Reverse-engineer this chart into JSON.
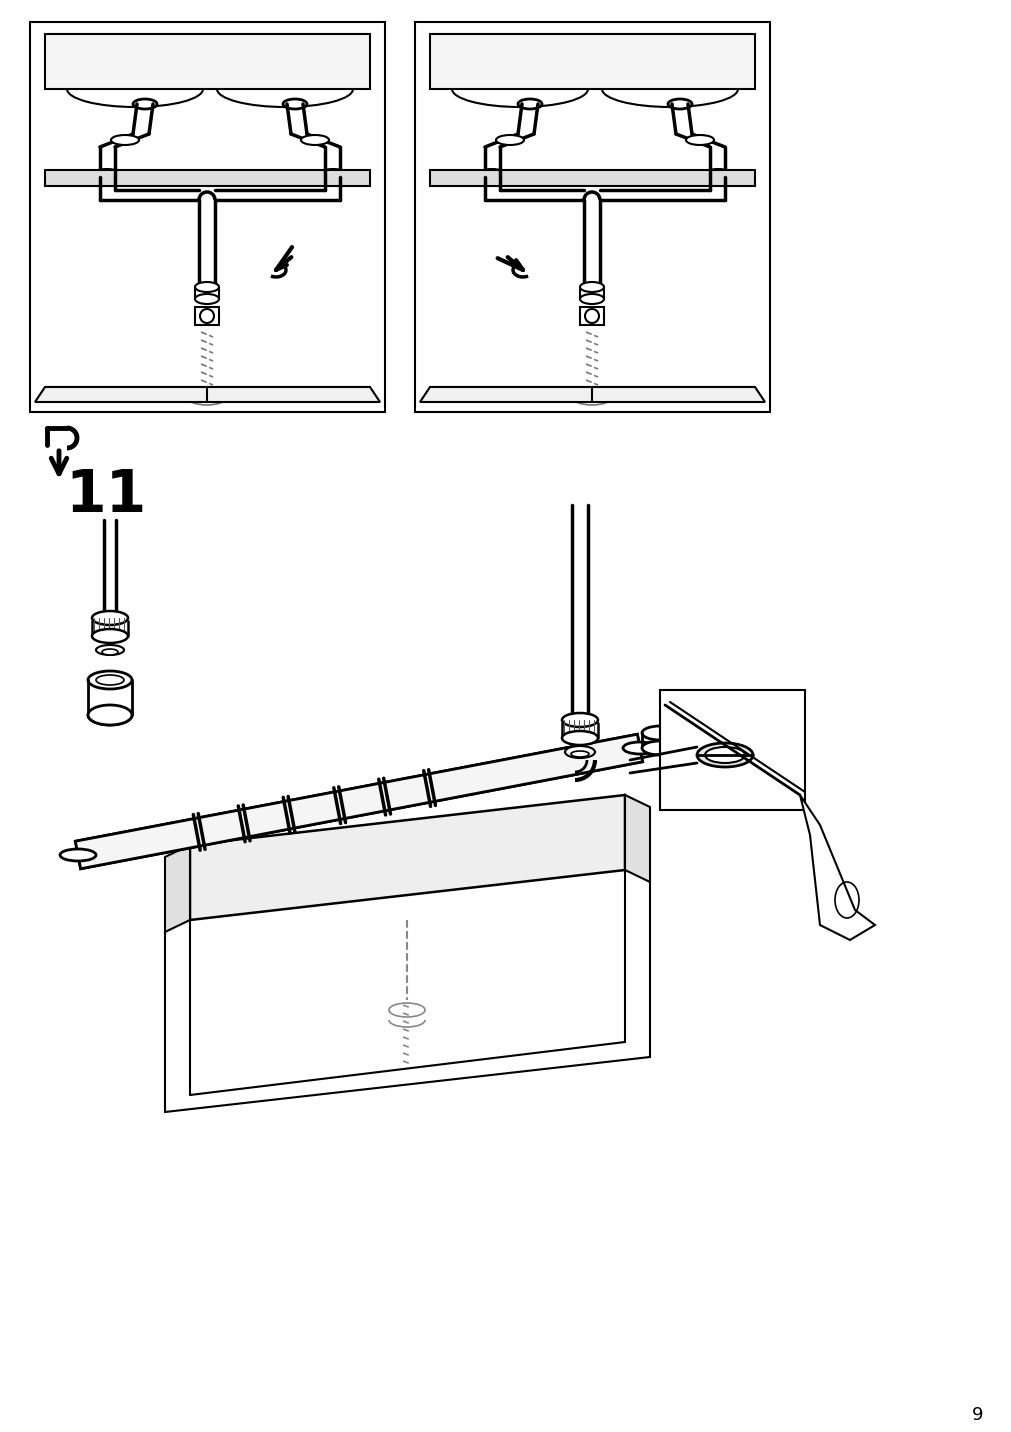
{
  "bg_color": "#ffffff",
  "line_color": "#000000",
  "page_number": "9",
  "step_number": "11",
  "fig_width": 10.12,
  "fig_height": 14.32,
  "dpi": 100
}
